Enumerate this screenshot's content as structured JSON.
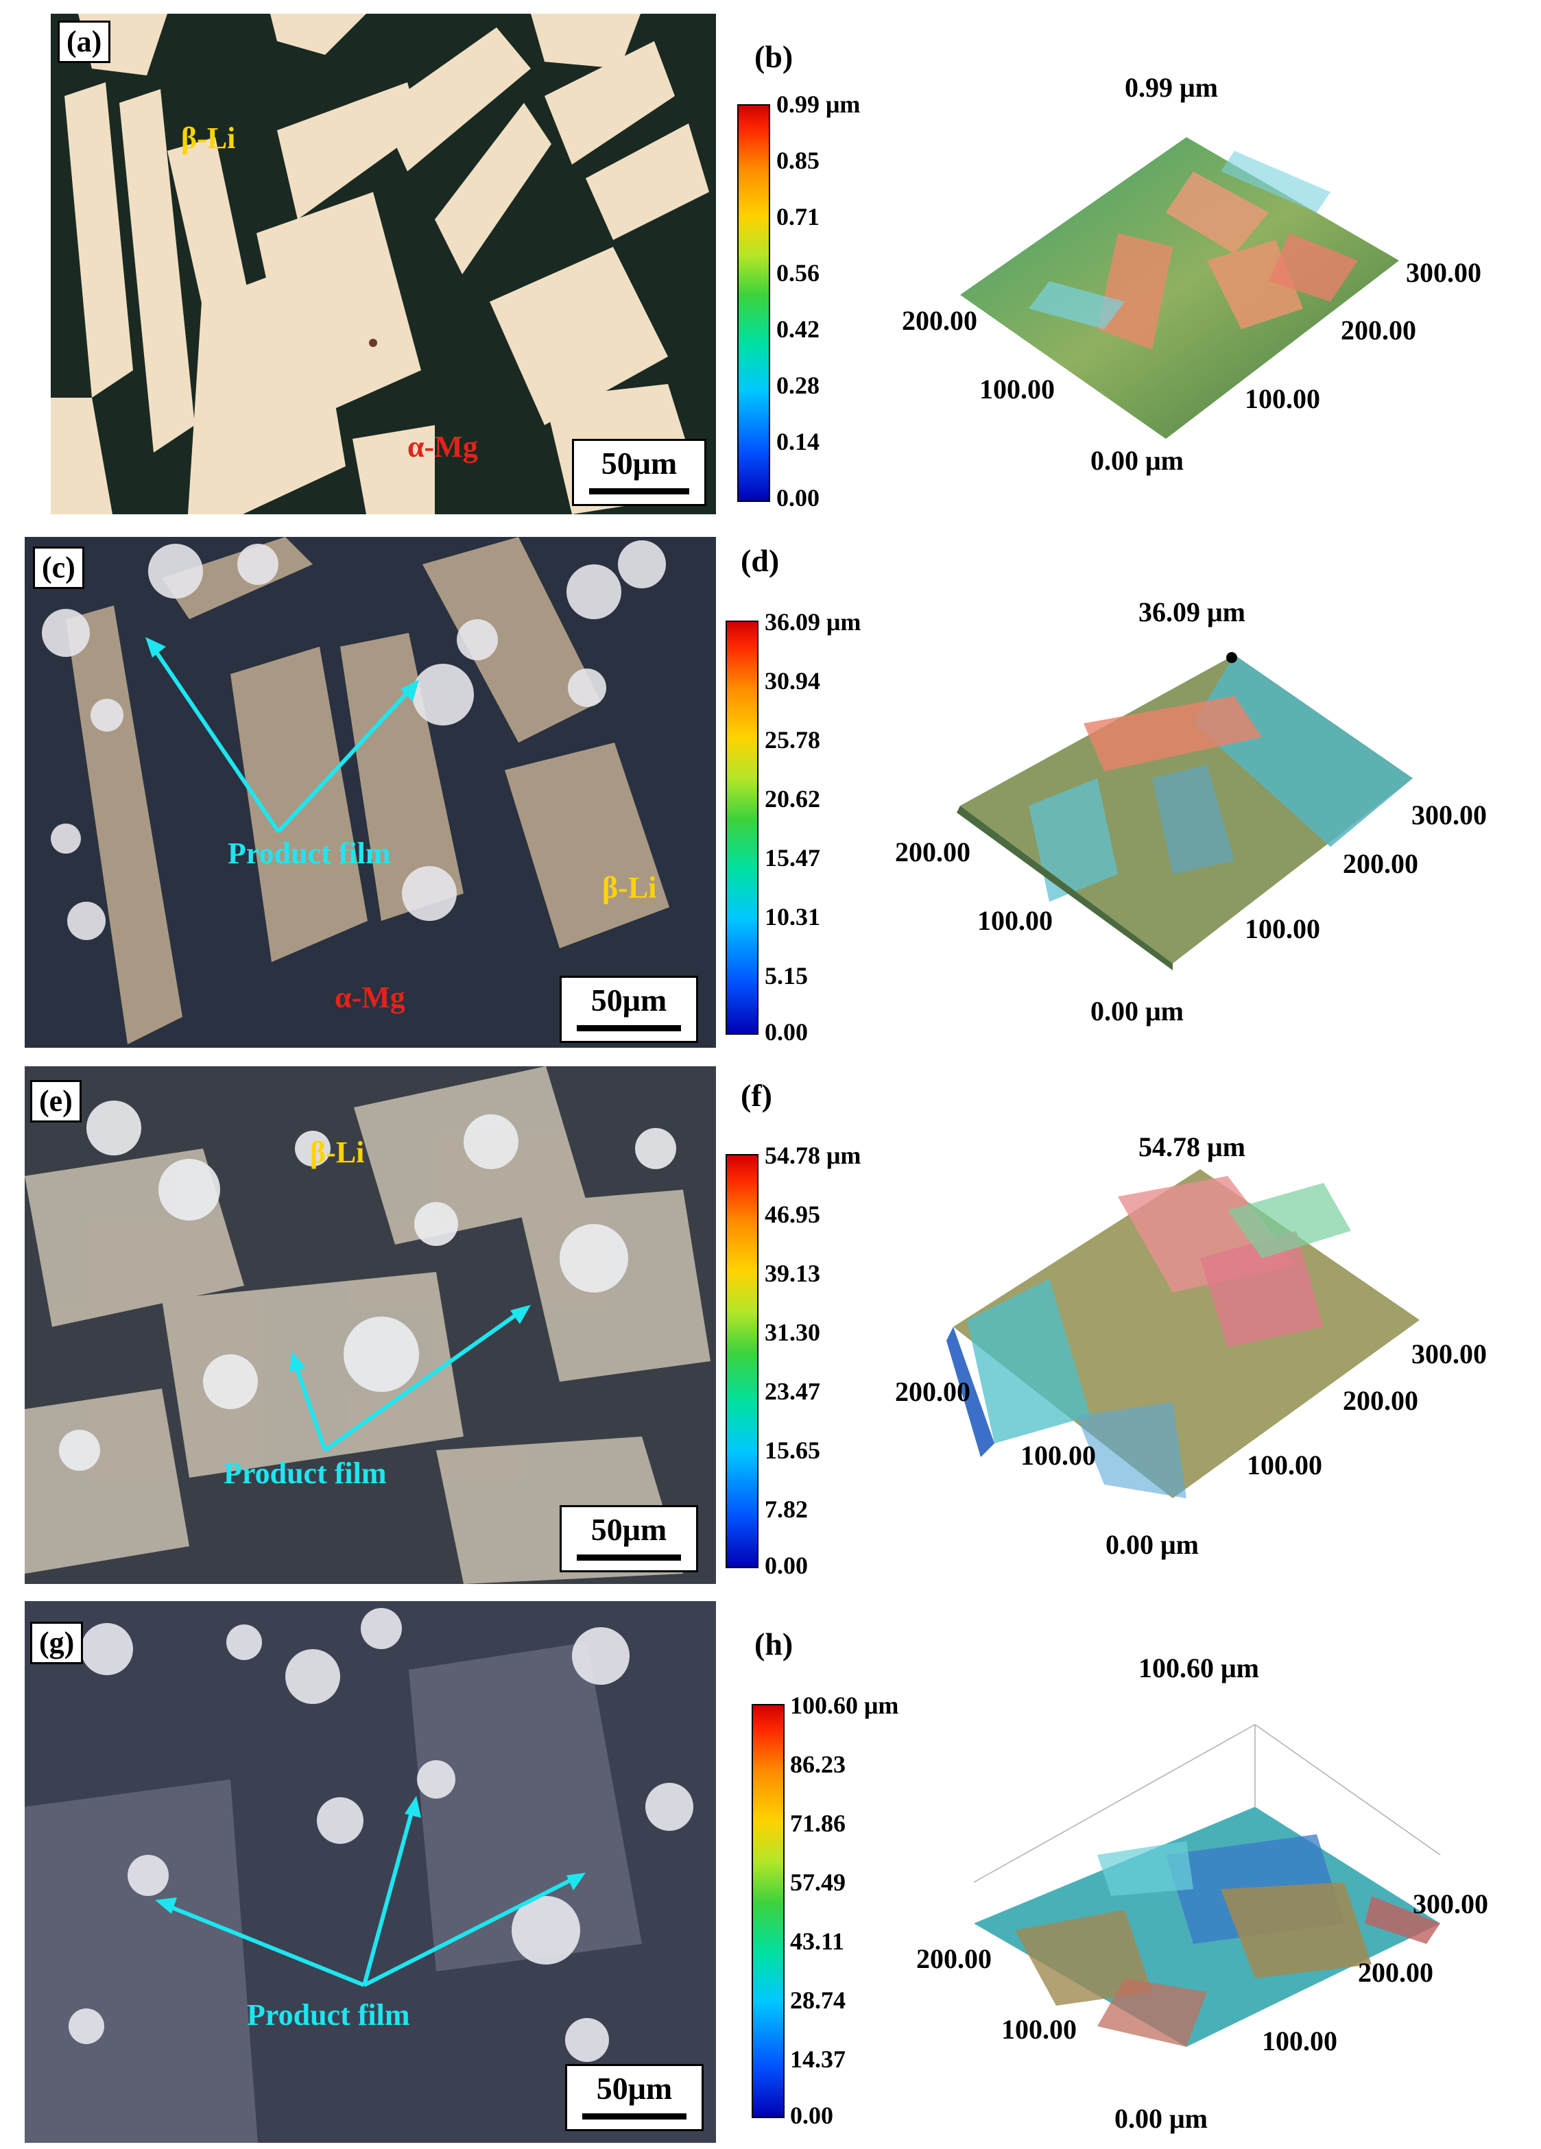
{
  "panels": [
    {
      "label": "(a)",
      "phases": [
        {
          "text": "β-Li",
          "color": "yellow"
        },
        {
          "text": "α-Mg",
          "color": "red"
        }
      ],
      "scale_bar": "50μm"
    },
    {
      "label": "(b)",
      "colorbar_ticks": [
        "0.99 μm",
        "0.85",
        "0.71",
        "0.56",
        "0.42",
        "0.28",
        "0.14",
        "0.00"
      ],
      "max_label": "0.99 μm",
      "axis_labels": [
        "200.00",
        "100.00",
        "0.00 μm",
        "100.00",
        "200.00",
        "300.00"
      ]
    },
    {
      "label": "(c)",
      "phases": [
        {
          "text": "Product film",
          "color": "cyan"
        },
        {
          "text": "β-Li",
          "color": "yellow"
        },
        {
          "text": "α-Mg",
          "color": "red"
        }
      ],
      "scale_bar": "50μm"
    },
    {
      "label": "(d)",
      "colorbar_ticks": [
        "36.09 μm",
        "30.94",
        "25.78",
        "20.62",
        "15.47",
        "10.31",
        "5.15",
        "0.00"
      ],
      "max_label": "36.09 μm",
      "axis_labels": [
        "200.00",
        "100.00",
        "0.00 μm",
        "100.00",
        "200.00",
        "300.00"
      ]
    },
    {
      "label": "(e)",
      "phases": [
        {
          "text": "β-Li",
          "color": "yellow"
        },
        {
          "text": "Product film",
          "color": "cyan"
        }
      ],
      "scale_bar": "50μm"
    },
    {
      "label": "(f)",
      "colorbar_ticks": [
        "54.78 μm",
        "46.95",
        "39.13",
        "31.30",
        "23.47",
        "15.65",
        "7.82",
        "0.00"
      ],
      "max_label": "54.78 μm",
      "axis_labels": [
        "200.00",
        "100.00",
        "0.00 μm",
        "100.00",
        "200.00",
        "300.00"
      ]
    },
    {
      "label": "(g)",
      "phases": [
        {
          "text": "Product film",
          "color": "cyan"
        }
      ],
      "scale_bar": "50μm"
    },
    {
      "label": "(h)",
      "colorbar_ticks": [
        "100.60 μm",
        "86.23",
        "71.86",
        "57.49",
        "43.11",
        "28.74",
        "14.37",
        "0.00"
      ],
      "max_label": "100.60 μm",
      "axis_labels": [
        "200.00",
        "100.00",
        "0.00 μm",
        "100.00",
        "200.00",
        "300.00"
      ]
    }
  ]
}
